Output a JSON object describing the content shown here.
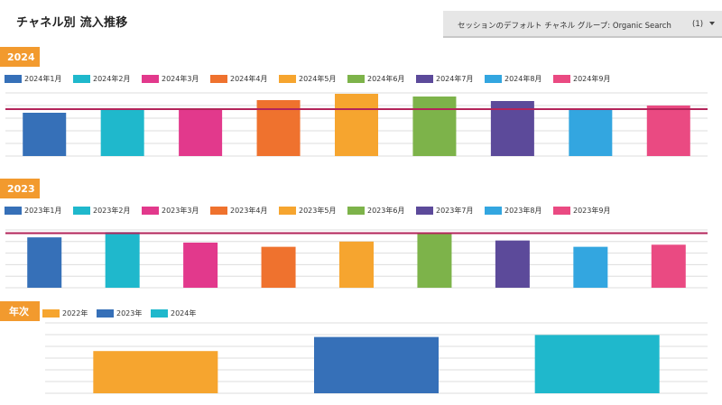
{
  "header": {
    "title": "チャネル別 流入推移",
    "filter_label": "セッションのデフォルト チャネル グループ: Organic Search",
    "filter_count": "(1)"
  },
  "sections": [
    {
      "tag": "2024",
      "legend": [
        "2024年1月",
        "2024年2月",
        "2024年3月",
        "2024年4月",
        "2024年5月",
        "2024年6月",
        "2024年7月",
        "2024年8月",
        "2024年9月"
      ]
    },
    {
      "tag": "2023",
      "legend": [
        "2023年1月",
        "2023年2月",
        "2023年3月",
        "2023年4月",
        "2023年5月",
        "2023年6月",
        "2023年7月",
        "2023年8月",
        "2023年9月"
      ]
    },
    {
      "tag": "年次",
      "legend": [
        "2022年",
        "2023年",
        "2024年"
      ]
    }
  ],
  "colors": {
    "monthly": [
      "#3670b8",
      "#1fb8cc",
      "#e2398c",
      "#ef722e",
      "#f6a52f",
      "#7db34a",
      "#5c4a9a",
      "#33a6e0",
      "#ea4a82"
    ],
    "yearly": [
      "#f6a52f",
      "#3670b8",
      "#1fb8cc"
    ],
    "reference": "#b3245a",
    "grid": "#dddddd",
    "tag_bg": "#f29a2e"
  },
  "chart_data": [
    {
      "type": "bar",
      "title": "2024",
      "categories": [
        "2024年1月",
        "2024年2月",
        "2024年3月",
        "2024年4月",
        "2024年5月",
        "2024年6月",
        "2024年7月",
        "2024年8月",
        "2024年9月"
      ],
      "values": [
        48,
        52,
        51,
        62,
        69,
        66,
        61,
        51,
        56
      ],
      "reference_line": 52,
      "ylim": [
        0,
        70
      ]
    },
    {
      "type": "bar",
      "title": "2023",
      "categories": [
        "2023年1月",
        "2023年2月",
        "2023年3月",
        "2023年4月",
        "2023年5月",
        "2023年6月",
        "2023年7月",
        "2023年8月",
        "2023年9月"
      ],
      "values": [
        48,
        53,
        43,
        39,
        44,
        52,
        45,
        39,
        41
      ],
      "reference_line": 52,
      "ylim": [
        0,
        55
      ]
    },
    {
      "type": "bar",
      "title": "年次",
      "categories": [
        "2022年",
        "2023年",
        "2024年"
      ],
      "values": [
        42,
        56,
        58
      ],
      "ylim": [
        0,
        70
      ]
    }
  ]
}
